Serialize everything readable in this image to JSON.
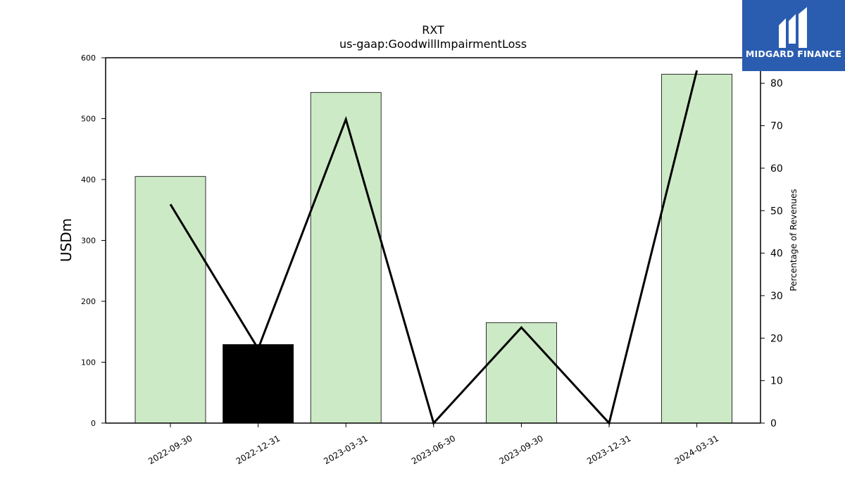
{
  "chart_data": {
    "type": "bar",
    "title": "RXT",
    "subtitle": "us-gaap:GoodwillImpairmentLoss",
    "ylabel": "USDm",
    "y2label": "Percentage of Revenues",
    "categories": [
      "2022-09-30",
      "2022-12-31",
      "2023-03-31",
      "2023-06-30",
      "2023-09-30",
      "2023-12-31",
      "2024-03-31"
    ],
    "series": [
      {
        "kind": "bar",
        "axis": "left",
        "values": [
          405,
          129,
          543,
          0,
          165,
          0,
          573
        ]
      },
      {
        "kind": "line",
        "axis": "right",
        "values": [
          51.5,
          17.5,
          71.5,
          0,
          22.5,
          0,
          83
        ]
      }
    ],
    "ylim": [
      0,
      600
    ],
    "y2lim": [
      0,
      86
    ],
    "yticks": [
      0,
      100,
      200,
      300,
      400,
      500,
      600
    ],
    "y2ticks": [
      0,
      10,
      20,
      30,
      40,
      50,
      60,
      70,
      80
    ],
    "highlight_index": 1,
    "colors": {
      "bar": "#cdeac6",
      "highlight": "#000000",
      "line": "#000000",
      "edge": "#000000"
    },
    "grid": false
  },
  "logo": {
    "text": "MIDGARD FINANCE",
    "background": "#2a5db0"
  }
}
